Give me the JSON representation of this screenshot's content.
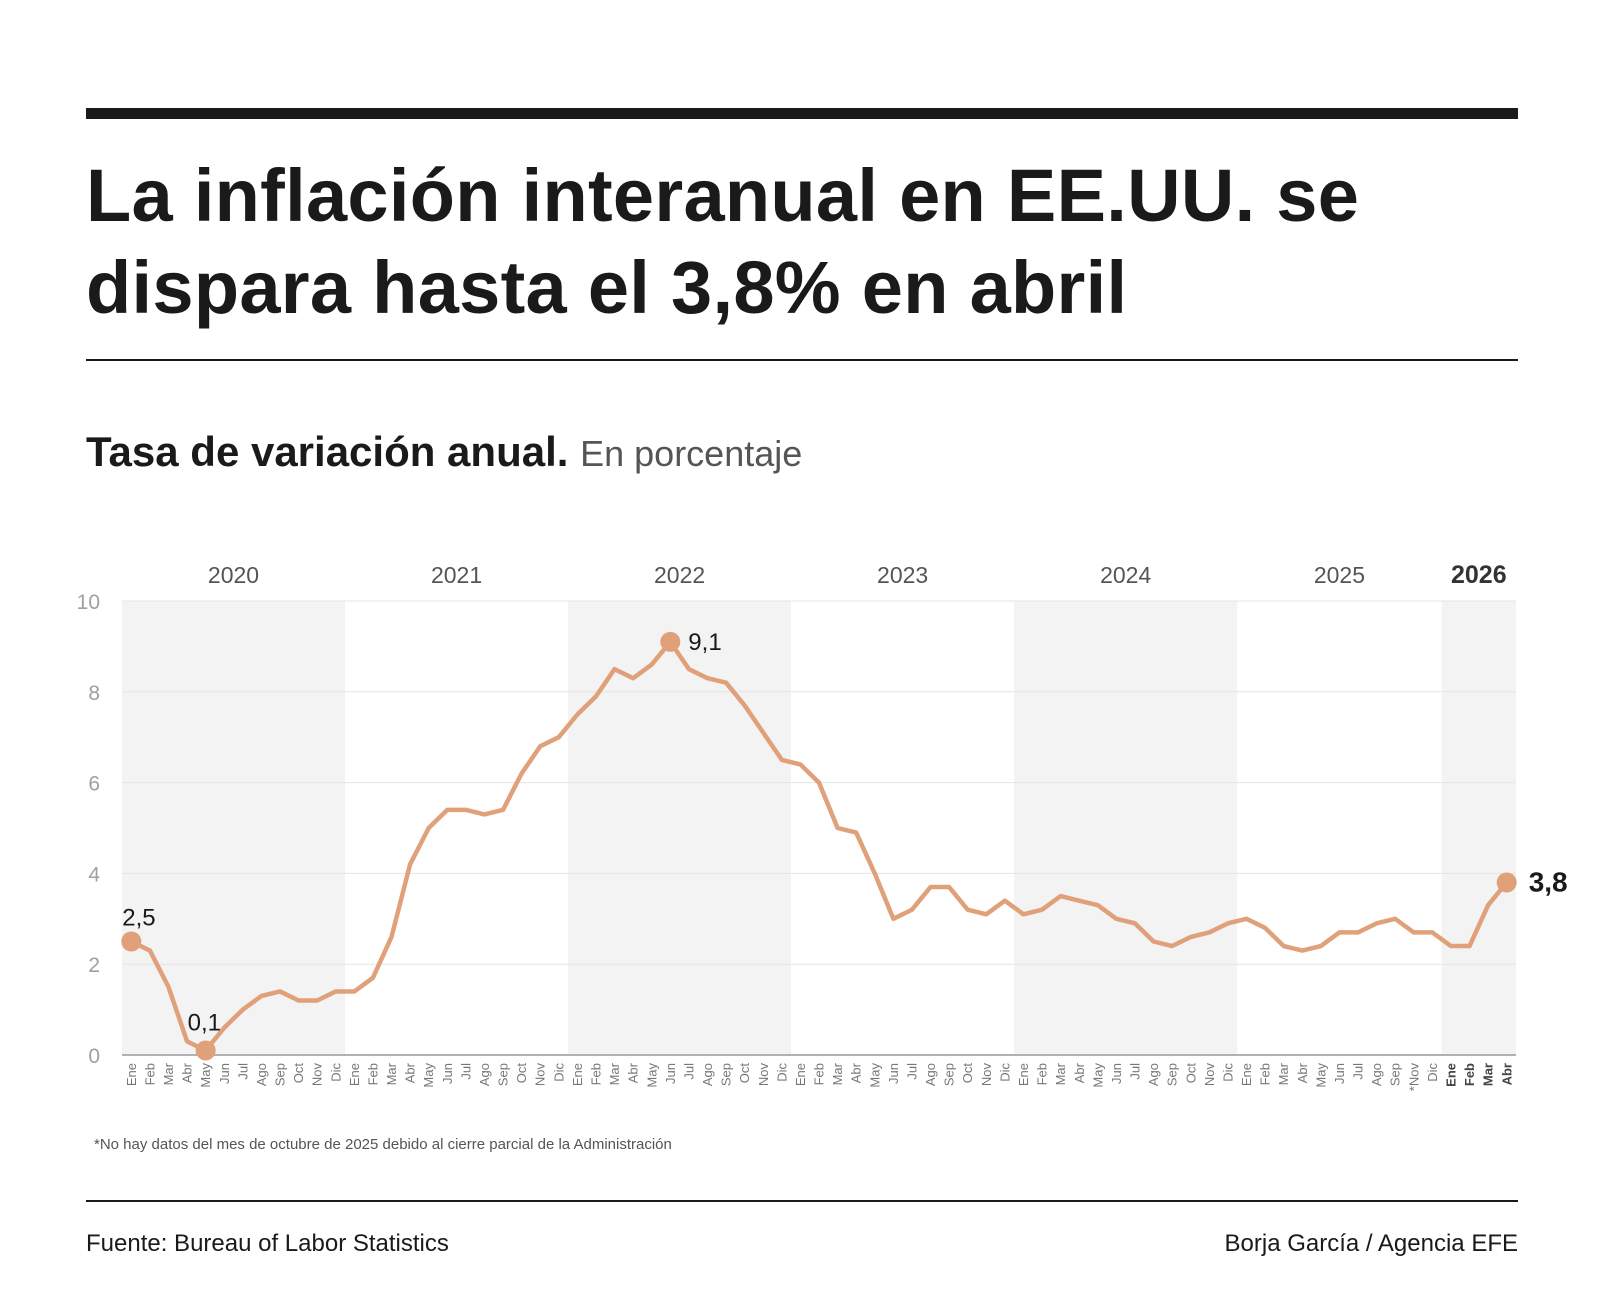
{
  "header": {
    "title": "La inflación interanual en EE.UU. se dispara hasta el 3,8% en abril",
    "subtitle_bold": "Tasa de variación anual.",
    "subtitle_light": "En porcentaje"
  },
  "footer": {
    "note": "*No hay datos del mes de octubre de 2025 debido al cierre parcial de la Administración",
    "source": "Fuente: Bureau of Labor Statistics",
    "credit": "Borja García / Agencia EFE"
  },
  "colors": {
    "line": "#e0a07a",
    "band": "#f3f3f3",
    "axis_text": "#a0a0a0",
    "text": "#1a1a1a"
  },
  "chart_data": {
    "type": "line",
    "title": "Tasa de variación anual.",
    "ylabel": "",
    "xlabel": "",
    "ylim": [
      0,
      10
    ],
    "yticks": [
      0,
      2,
      4,
      6,
      8,
      10
    ],
    "grid": true,
    "years": [
      {
        "label": "2020",
        "bold": false,
        "shaded": true
      },
      {
        "label": "2021",
        "bold": false,
        "shaded": false
      },
      {
        "label": "2022",
        "bold": false,
        "shaded": true
      },
      {
        "label": "2023",
        "bold": false,
        "shaded": false
      },
      {
        "label": "2024",
        "bold": false,
        "shaded": true
      },
      {
        "label": "2025",
        "bold": false,
        "shaded": false
      },
      {
        "label": "2026",
        "bold": true,
        "shaded": true
      }
    ],
    "months_per_year": [
      [
        "Ene",
        "Feb",
        "Mar",
        "Abr",
        "May",
        "Jun",
        "Jul",
        "Ago",
        "Sep",
        "Oct",
        "Nov",
        "Dic"
      ],
      [
        "Ene",
        "Feb",
        "Mar",
        "Abr",
        "May",
        "Jun",
        "Jul",
        "Ago",
        "Sep",
        "Oct",
        "Nov",
        "Dic"
      ],
      [
        "Ene",
        "Feb",
        "Mar",
        "Abr",
        "May",
        "Jun",
        "Jul",
        "Ago",
        "Sep",
        "Oct",
        "Nov",
        "Dic"
      ],
      [
        "Ene",
        "Feb",
        "Mar",
        "Abr",
        "May",
        "Jun",
        "Jul",
        "Ago",
        "Sep",
        "Oct",
        "Nov",
        "Dic"
      ],
      [
        "Ene",
        "Feb",
        "Mar",
        "Abr",
        "May",
        "Jun",
        "Jul",
        "Ago",
        "Sep",
        "Oct",
        "Nov",
        "Dic"
      ],
      [
        "Ene",
        "Feb",
        "Mar",
        "Abr",
        "May",
        "Jun",
        "Jul",
        "Ago",
        "Sep",
        "*Nov",
        "Dic"
      ],
      [
        "Ene",
        "Feb",
        "Mar",
        "Abr"
      ]
    ],
    "series": [
      {
        "values": [
          2.5,
          2.3,
          1.5,
          0.3,
          0.1,
          0.6,
          1.0,
          1.3,
          1.4,
          1.2,
          1.2,
          1.4,
          1.4,
          1.7,
          2.6,
          4.2,
          5.0,
          5.4,
          5.4,
          5.3,
          5.4,
          6.2,
          6.8,
          7.0,
          7.5,
          7.9,
          8.5,
          8.3,
          8.6,
          9.1,
          8.5,
          8.3,
          8.2,
          7.7,
          7.1,
          6.5,
          6.4,
          6.0,
          5.0,
          4.9,
          4.0,
          3.0,
          3.2,
          3.7,
          3.7,
          3.2,
          3.1,
          3.4,
          3.1,
          3.2,
          3.5,
          3.4,
          3.3,
          3.0,
          2.9,
          2.5,
          2.4,
          2.6,
          2.7,
          2.9,
          3.0,
          2.8,
          2.4,
          2.3,
          2.4,
          2.7,
          2.7,
          2.9,
          3.0,
          2.7,
          2.7,
          2.4,
          2.4,
          3.3,
          3.8
        ]
      }
    ],
    "annotations": [
      {
        "index": 0,
        "label": "2,5"
      },
      {
        "index": 4,
        "label": "0,1"
      },
      {
        "index": 29,
        "label": "9,1"
      },
      {
        "index": 74,
        "label": "3,8"
      }
    ]
  }
}
